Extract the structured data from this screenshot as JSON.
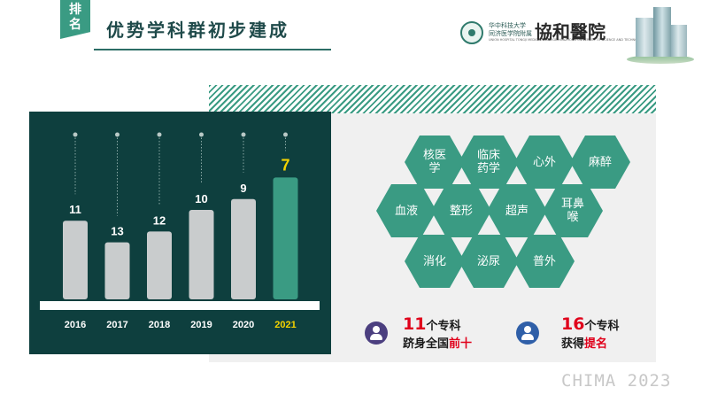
{
  "header": {
    "tag_chars": [
      "排",
      "名"
    ],
    "title": "优势学科群初步建成"
  },
  "logo": {
    "line1": "华中科技大学",
    "line2": "同济医学院附属",
    "english": "UNION HOSPITAL TONGJI MEDICAL COLLEGE HUAZHONG UNIVERSITY OF SCIENCE AND TECHNOLOGY",
    "name": "協和醫院"
  },
  "chart_data": {
    "type": "bar",
    "categories": [
      "2016",
      "2017",
      "2018",
      "2019",
      "2020",
      "2021"
    ],
    "values": [
      11,
      13,
      12,
      10,
      9,
      7
    ],
    "highlight_index": 5,
    "colors": {
      "bar": "#c9cccd",
      "highlight": "#3a9b83",
      "highlight_label": "#f5d300",
      "background": "#0e3f3e",
      "label": "#ffffff"
    }
  },
  "hexagons": [
    "核医\n学",
    "临床\n药学",
    "心外",
    "麻醉",
    "血液",
    "整形",
    "超声",
    "耳鼻\n喉",
    "消化",
    "泌尿",
    "普外"
  ],
  "stats": {
    "left": {
      "num": "11",
      "line1_suffix": "个专科",
      "line2_prefix": "跻身全国",
      "line2_highlight": "前十",
      "icon": "doctor-icon"
    },
    "right": {
      "num": "16",
      "line1_suffix": "个专科",
      "line2_prefix": "获得",
      "line2_highlight": "提名",
      "icon": "nurse-icon"
    }
  },
  "watermark": "CHIMA 2023"
}
